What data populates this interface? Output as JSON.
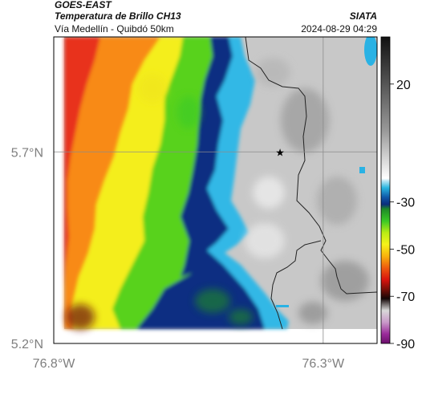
{
  "header": {
    "satellite": "GOES-EAST",
    "product": "Temperatura de Brillo CH13",
    "region": "Vía Medellín - Quibdó 50km",
    "organization": "SIATA",
    "timestamp": "2024-08-29 04:29"
  },
  "chart_data": {
    "type": "heatmap",
    "title": "Temperatura de Brillo CH13",
    "xlabel": "",
    "ylabel": "",
    "x_range": [
      -76.8,
      -76.2
    ],
    "y_range": [
      5.2,
      6.0
    ],
    "x_ticks": [
      {
        "value": -76.8,
        "label": "76.8°W"
      },
      {
        "value": -76.3,
        "label": "76.3°W"
      }
    ],
    "y_ticks": [
      {
        "value": 5.7,
        "label": "5.7°N"
      },
      {
        "value": 5.2,
        "label": "5.2°N"
      }
    ],
    "gridlines": [
      {
        "axis": "x",
        "value": -76.3
      },
      {
        "axis": "y",
        "value": 5.7
      }
    ],
    "marker": {
      "lon": -76.38,
      "lat": 5.7,
      "symbol": "star"
    },
    "colorbar": {
      "range": [
        -90,
        40
      ],
      "ticks": [
        20,
        -30,
        -50,
        -70,
        -90
      ],
      "stops": [
        {
          "t": 40,
          "color": "#111111"
        },
        {
          "t": 0,
          "color": "#9a9a9a"
        },
        {
          "t": -20,
          "color": "#ffffff"
        },
        {
          "t": -21,
          "color": "#bfe8f5"
        },
        {
          "t": -24,
          "color": "#29b6e0"
        },
        {
          "t": -28,
          "color": "#1058a8"
        },
        {
          "t": -31,
          "color": "#0b2d7c"
        },
        {
          "t": -33,
          "color": "#1e8a28"
        },
        {
          "t": -38,
          "color": "#39c825"
        },
        {
          "t": -43,
          "color": "#b9ec14"
        },
        {
          "t": -48,
          "color": "#f6f31a"
        },
        {
          "t": -53,
          "color": "#f8b20c"
        },
        {
          "t": -58,
          "color": "#ee5a0e"
        },
        {
          "t": -63,
          "color": "#d8130d"
        },
        {
          "t": -67,
          "color": "#7a0f08"
        },
        {
          "t": -71,
          "color": "#140707"
        },
        {
          "t": -76,
          "color": "#d9d9d9"
        },
        {
          "t": -81,
          "color": "#c99ac9"
        },
        {
          "t": -86,
          "color": "#9a2b9a"
        },
        {
          "t": -90,
          "color": "#6b0f6b"
        }
      ]
    },
    "bands": [
      {
        "name": "red-zone",
        "value": -64,
        "color": "#e8321a"
      },
      {
        "name": "orange-zone",
        "value": -55,
        "color": "#f88a12"
      },
      {
        "name": "yellow-zone",
        "value": -47,
        "color": "#f4ee1e"
      },
      {
        "name": "green-zone",
        "value": -38,
        "color": "#59d21f"
      },
      {
        "name": "dark-blue-zone",
        "value": -31,
        "color": "#0b2f82"
      },
      {
        "name": "light-blue-zone",
        "value": -24,
        "color": "#33b8e6"
      },
      {
        "name": "clear-sky-zone",
        "value": 5,
        "color": "#c8c8c8"
      }
    ]
  }
}
